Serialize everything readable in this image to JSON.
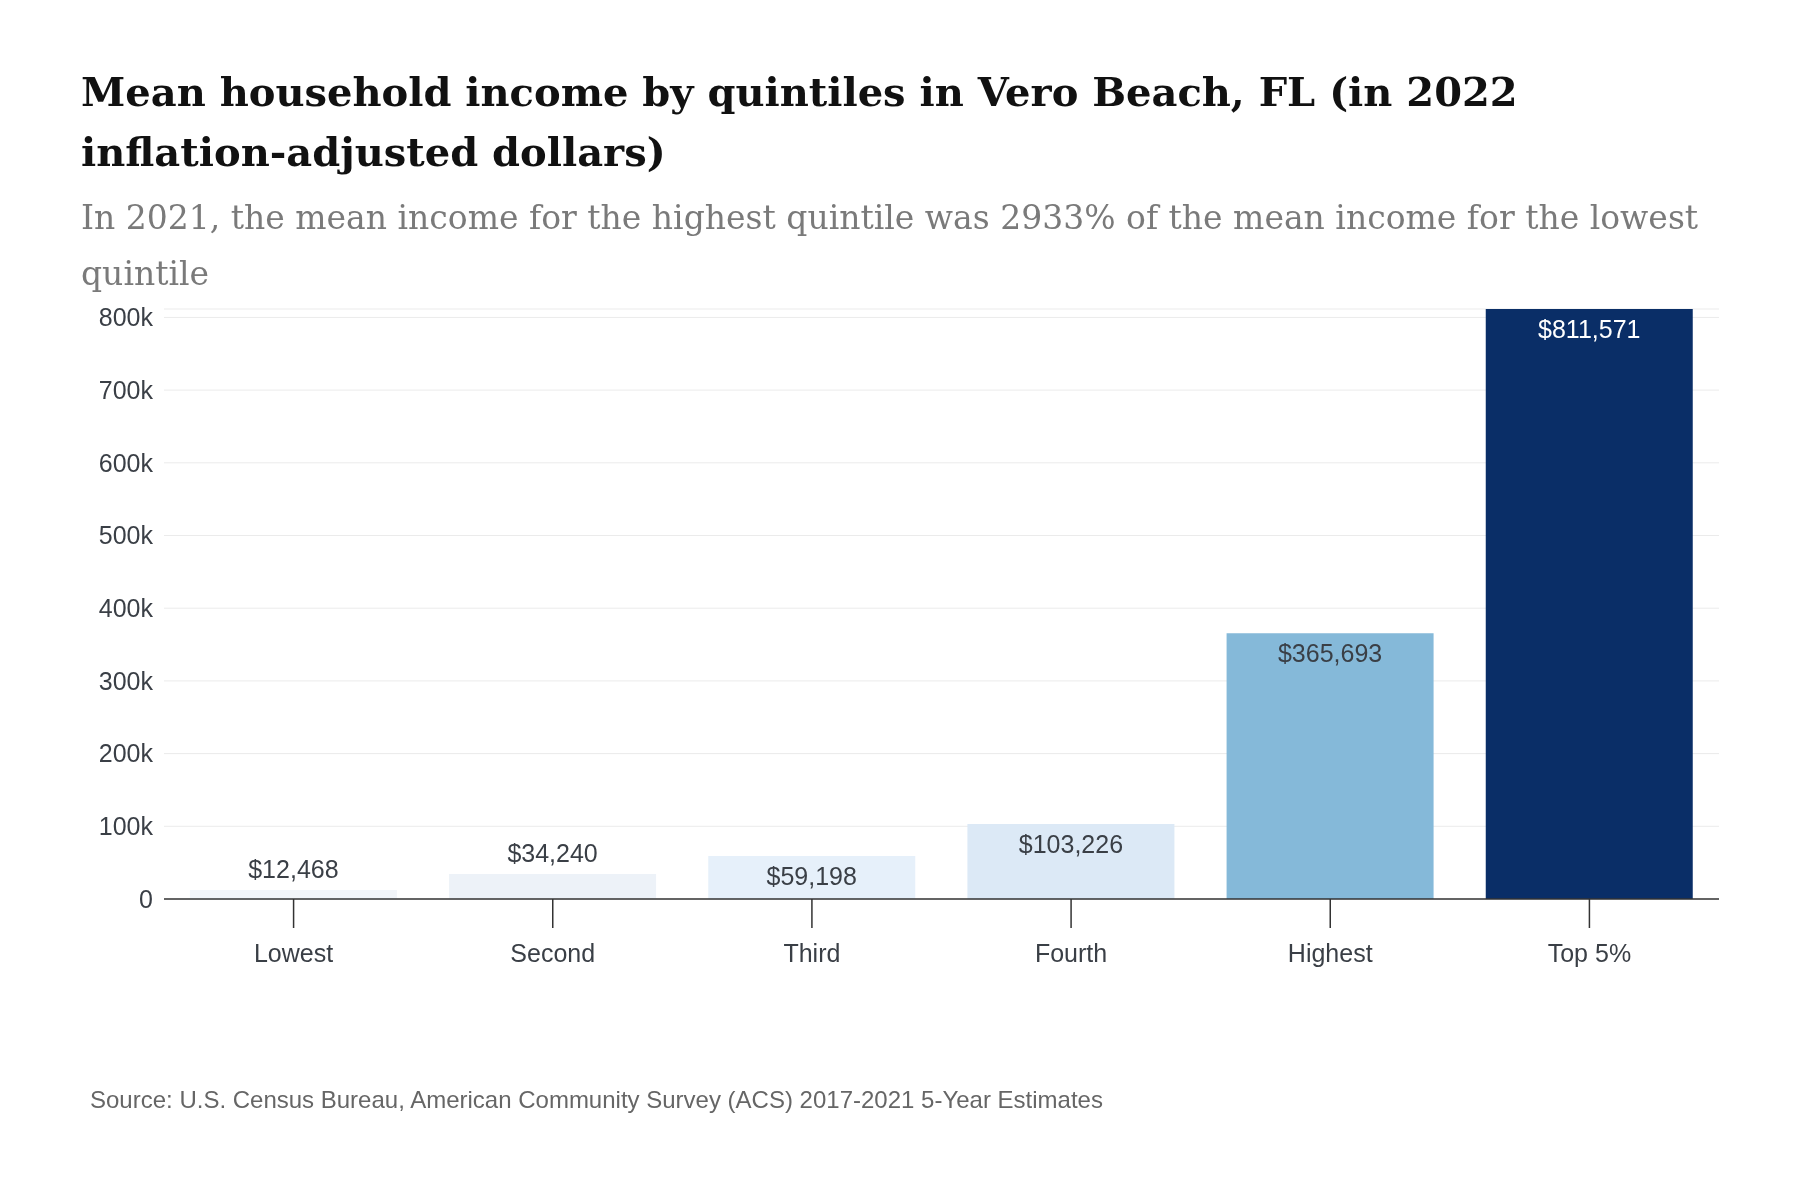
{
  "chart_data": {
    "type": "bar",
    "title": "Mean household income by quintiles in Vero Beach, FL (in 2022 inflation-adjusted dollars)",
    "subtitle": "In 2021, the mean income for the highest quintile was 2933% of the mean income for the lowest quintile",
    "categories": [
      "Lowest",
      "Second",
      "Third",
      "Fourth",
      "Highest",
      "Top 5%"
    ],
    "values": [
      12468,
      34240,
      59198,
      103226,
      365693,
      811571
    ],
    "colors": [
      "#f2f5f9",
      "#edf2f8",
      "#e6f0fa",
      "#dce9f6",
      "#85b9d9",
      "#0a2e67"
    ],
    "value_labels": [
      "$12,468",
      "$34,240",
      "$59,198",
      "$103,226",
      "$365,693",
      "$811,571"
    ],
    "ylim": [
      0,
      811571
    ],
    "yticks": [
      0,
      {
        "value": 100000,
        "label": "100k"
      },
      {
        "value": 200000,
        "label": "200k"
      },
      {
        "value": 300000,
        "label": "300k"
      },
      {
        "value": 400000,
        "label": "400k"
      },
      {
        "value": 500000,
        "label": "500k"
      },
      {
        "value": 600000,
        "label": "600k"
      },
      {
        "value": 700000,
        "label": "700k"
      },
      {
        "value": 800000,
        "label": "800k"
      }
    ],
    "grid": "y",
    "annotations": [
      "Source: U.S. Census Bureau, American Community Survey (ACS) 2017-2021 5-Year Estimates"
    ]
  }
}
